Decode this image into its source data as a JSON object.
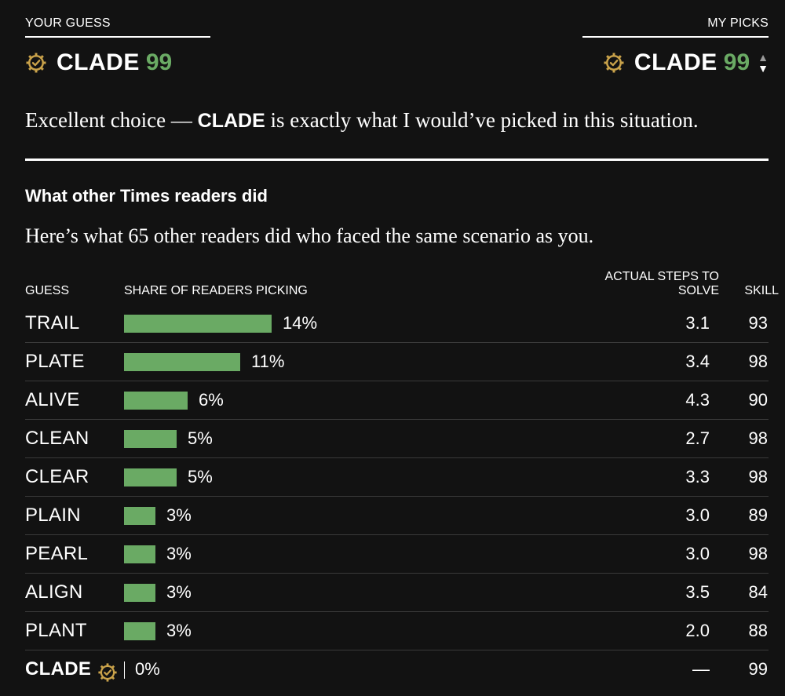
{
  "header": {
    "your_guess_label": "YOUR GUESS",
    "my_picks_label": "MY PICKS",
    "your_guess": {
      "word": "CLADE",
      "score": "99"
    },
    "my_pick": {
      "word": "CLADE",
      "score": "99"
    },
    "stepper_up": "▲",
    "stepper_down": "▼",
    "badge_icon": "check-gear-badge-icon"
  },
  "comment": {
    "prefix": "Excellent choice — ",
    "word": "CLADE",
    "suffix": " is exactly what I would’ve picked in this situation."
  },
  "section": {
    "title": "What other Times readers did",
    "subtitle": "Here’s what 65 other readers did who faced the same scenario as you."
  },
  "table": {
    "headers": {
      "guess": "GUESS",
      "share": "SHARE OF READERS PICKING",
      "steps_line1": "ACTUAL STEPS TO",
      "steps_line2": "SOLVE",
      "skill": "SKILL"
    },
    "rows": [
      {
        "guess": "TRAIL",
        "share_pct": 14,
        "share_label": "14%",
        "steps": "3.1",
        "skill": "93"
      },
      {
        "guess": "PLATE",
        "share_pct": 11,
        "share_label": "11%",
        "steps": "3.4",
        "skill": "98"
      },
      {
        "guess": "ALIVE",
        "share_pct": 6,
        "share_label": "6%",
        "steps": "4.3",
        "skill": "90"
      },
      {
        "guess": "CLEAN",
        "share_pct": 5,
        "share_label": "5%",
        "steps": "2.7",
        "skill": "98"
      },
      {
        "guess": "CLEAR",
        "share_pct": 5,
        "share_label": "5%",
        "steps": "3.3",
        "skill": "98"
      },
      {
        "guess": "PLAIN",
        "share_pct": 3,
        "share_label": "3%",
        "steps": "3.0",
        "skill": "89"
      },
      {
        "guess": "PEARL",
        "share_pct": 3,
        "share_label": "3%",
        "steps": "3.0",
        "skill": "98"
      },
      {
        "guess": "ALIGN",
        "share_pct": 3,
        "share_label": "3%",
        "steps": "3.5",
        "skill": "84"
      },
      {
        "guess": "PLANT",
        "share_pct": 3,
        "share_label": "3%",
        "steps": "2.0",
        "skill": "88"
      }
    ],
    "your_row": {
      "guess": "CLADE",
      "share_pct": 0,
      "share_label": "0%",
      "steps": "—",
      "skill": "99"
    }
  },
  "colors": {
    "background": "#121212",
    "accent_green": "#6aaa64",
    "badge_gold": "#c9a24a",
    "text": "#ffffff"
  }
}
